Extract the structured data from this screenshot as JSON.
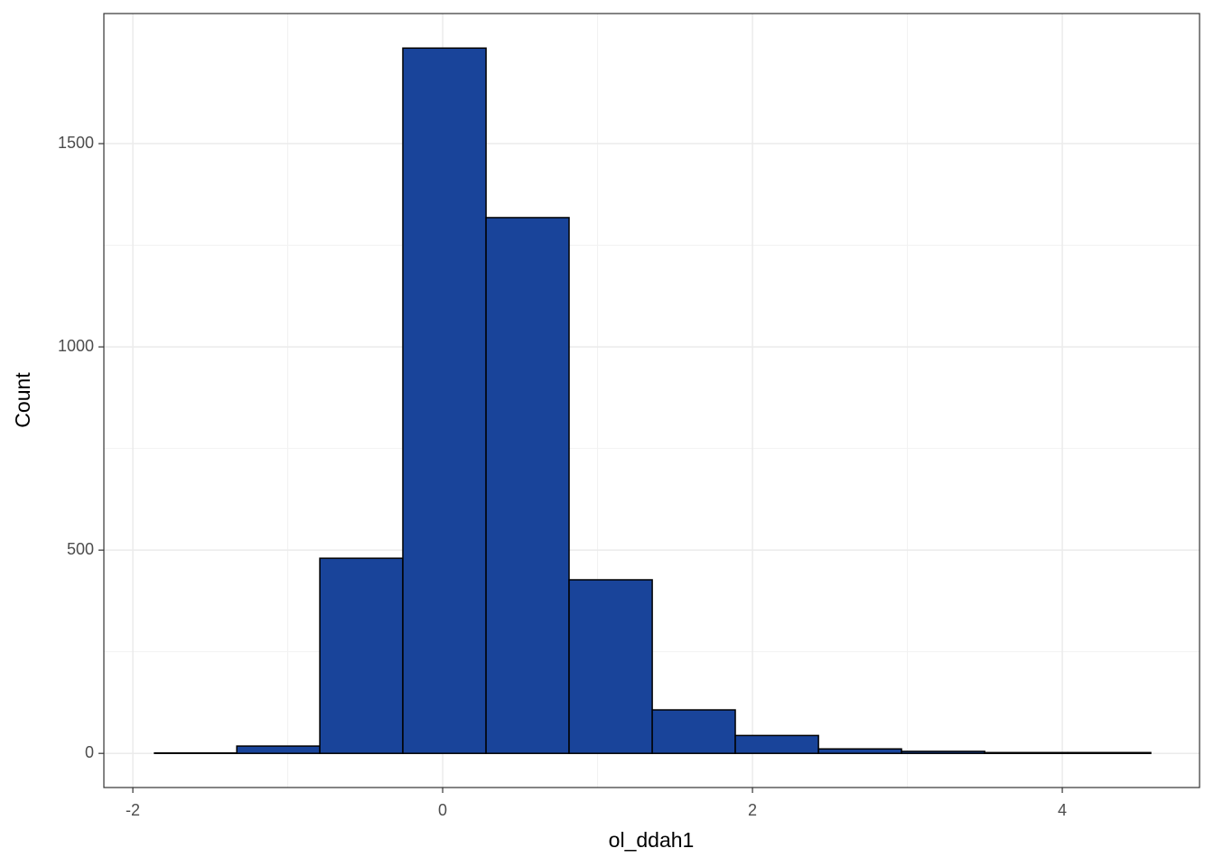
{
  "chart_data": {
    "type": "histogram",
    "x_label": "ol_ddah1",
    "y_label": "Count",
    "bins": [
      -1.86,
      -1.329,
      -0.793,
      -0.257,
      0.28,
      0.816,
      1.353,
      1.889,
      2.426,
      2.962,
      3.499,
      4.035,
      4.571
    ],
    "values": [
      1,
      18,
      480,
      1735,
      1318,
      427,
      107,
      44,
      11,
      5,
      2,
      2
    ],
    "color": "#19449a",
    "edge_color": "#000000",
    "xlim": [
      -2.187,
      4.886
    ],
    "ylim": [
      -84,
      1820
    ],
    "xticks": [
      -2,
      0,
      2,
      4
    ],
    "yticks": [
      0,
      500,
      1000,
      1500
    ],
    "x_minor_ticks": [
      -1,
      1,
      3
    ],
    "y_minor_ticks": [
      250,
      750,
      1250
    ],
    "grid": true
  }
}
